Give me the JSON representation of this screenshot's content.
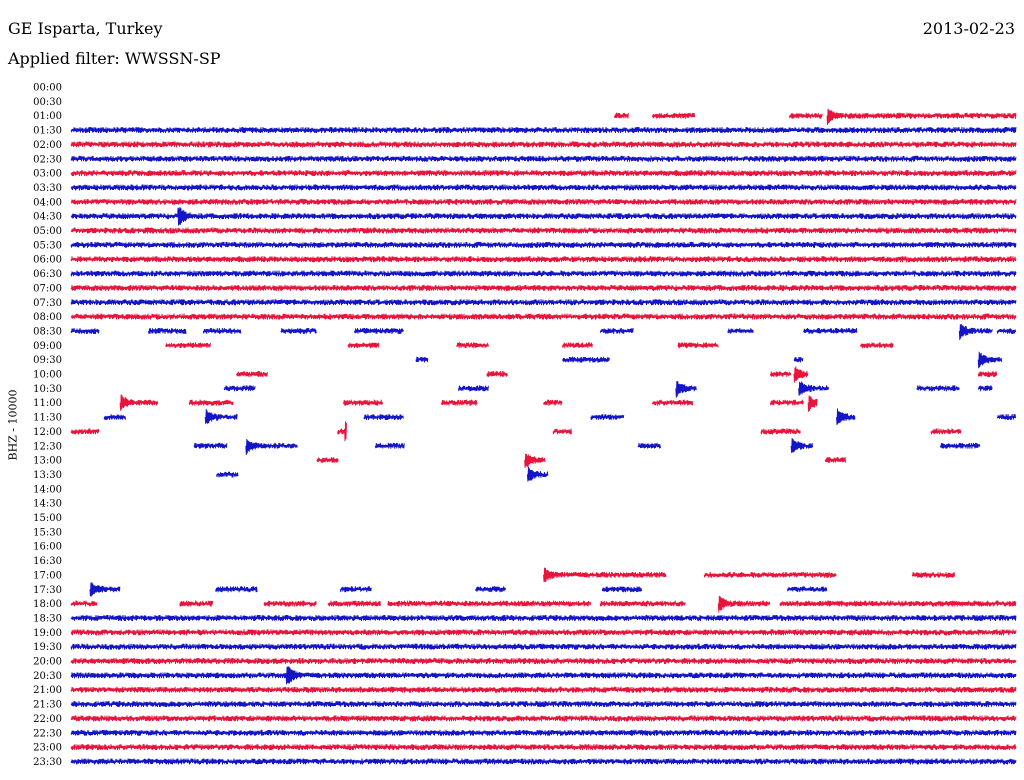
{
  "header": {
    "station": "GE Isparta, Turkey",
    "date": "2013-02-23",
    "filter": "Applied filter: WWSSN-SP"
  },
  "chart_data": {
    "type": "line",
    "title": "GE Isparta, Turkey",
    "subtitle": "Applied filter: WWSSN-SP",
    "ylabel": "BHZ - 10000",
    "xlabel": "",
    "colors": [
      "#e8143c",
      "#1414c8"
    ],
    "rows": [
      {
        "label": "00:00",
        "segments": [],
        "events": []
      },
      {
        "label": "00:30",
        "segments": [],
        "events": []
      },
      {
        "label": "01:00",
        "segments": [
          [
            0.575,
            0.59
          ],
          [
            0.615,
            0.66
          ],
          [
            0.76,
            0.795
          ],
          [
            0.8,
            1.0
          ]
        ],
        "events": [
          0.8
        ]
      },
      {
        "label": "01:30",
        "segments": [
          [
            0,
            1
          ]
        ],
        "events": []
      },
      {
        "label": "02:00",
        "segments": [
          [
            0,
            1
          ]
        ],
        "events": []
      },
      {
        "label": "02:30",
        "segments": [
          [
            0,
            1
          ]
        ],
        "events": []
      },
      {
        "label": "03:00",
        "segments": [
          [
            0,
            1
          ]
        ],
        "events": []
      },
      {
        "label": "03:30",
        "segments": [
          [
            0,
            1
          ]
        ],
        "events": []
      },
      {
        "label": "04:00",
        "segments": [
          [
            0,
            1
          ]
        ],
        "events": []
      },
      {
        "label": "04:30",
        "segments": [
          [
            0,
            1
          ]
        ],
        "events": [
          0.115
        ]
      },
      {
        "label": "05:00",
        "segments": [
          [
            0,
            1
          ]
        ],
        "events": []
      },
      {
        "label": "05:30",
        "segments": [
          [
            0,
            1
          ]
        ],
        "events": []
      },
      {
        "label": "06:00",
        "segments": [
          [
            0,
            1
          ]
        ],
        "events": []
      },
      {
        "label": "06:30",
        "segments": [
          [
            0,
            1
          ]
        ],
        "events": []
      },
      {
        "label": "07:00",
        "segments": [
          [
            0,
            1
          ]
        ],
        "events": []
      },
      {
        "label": "07:30",
        "segments": [
          [
            0,
            1
          ]
        ],
        "events": []
      },
      {
        "label": "08:00",
        "segments": [
          [
            0,
            1
          ]
        ],
        "events": []
      },
      {
        "label": "08:30",
        "segments": [
          [
            0,
            0.03
          ],
          [
            0.082,
            0.122
          ],
          [
            0.14,
            0.18
          ],
          [
            0.222,
            0.26
          ],
          [
            0.3,
            0.352
          ],
          [
            0.56,
            0.595
          ],
          [
            0.695,
            0.722
          ],
          [
            0.775,
            0.832
          ],
          [
            0.94,
            0.975
          ],
          [
            0.98,
            1.0
          ]
        ],
        "events": [
          0.94
        ]
      },
      {
        "label": "09:00",
        "segments": [
          [
            0.1,
            0.148
          ],
          [
            0.293,
            0.326
          ],
          [
            0.408,
            0.442
          ],
          [
            0.52,
            0.552
          ],
          [
            0.642,
            0.685
          ],
          [
            0.835,
            0.87
          ]
        ],
        "events": []
      },
      {
        "label": "09:30",
        "segments": [
          [
            0.365,
            0.378
          ],
          [
            0.52,
            0.57
          ],
          [
            0.765,
            0.775
          ],
          [
            0.96,
            0.985
          ]
        ],
        "events": [
          0.96
        ]
      },
      {
        "label": "10:00",
        "segments": [
          [
            0.175,
            0.208
          ],
          [
            0.44,
            0.462
          ],
          [
            0.74,
            0.762
          ],
          [
            0.765,
            0.78
          ],
          [
            0.96,
            0.98
          ]
        ],
        "events": [
          0.765
        ]
      },
      {
        "label": "10:30",
        "segments": [
          [
            0.162,
            0.195
          ],
          [
            0.41,
            0.442
          ],
          [
            0.64,
            0.662
          ],
          [
            0.77,
            0.802
          ],
          [
            0.895,
            0.94
          ],
          [
            0.96,
            0.975
          ]
        ],
        "events": [
          0.64,
          0.77
        ]
      },
      {
        "label": "11:00",
        "segments": [
          [
            0.052,
            0.092
          ],
          [
            0.125,
            0.172
          ],
          [
            0.288,
            0.33
          ],
          [
            0.392,
            0.43
          ],
          [
            0.5,
            0.52
          ],
          [
            0.615,
            0.658
          ],
          [
            0.74,
            0.775
          ],
          [
            0.78,
            0.79
          ]
        ],
        "events": [
          0.052,
          0.78
        ]
      },
      {
        "label": "11:30",
        "segments": [
          [
            0.035,
            0.058
          ],
          [
            0.142,
            0.176
          ],
          [
            0.31,
            0.352
          ],
          [
            0.55,
            0.585
          ],
          [
            0.81,
            0.83
          ],
          [
            0.98,
            1.0
          ]
        ],
        "events": [
          0.142,
          0.81
        ]
      },
      {
        "label": "12:00",
        "segments": [
          [
            0,
            0.03
          ],
          [
            0.282,
            0.292
          ],
          [
            0.51,
            0.53
          ],
          [
            0.73,
            0.772
          ],
          [
            0.91,
            0.942
          ]
        ],
        "events": [
          0.292
        ]
      },
      {
        "label": "12:30",
        "segments": [
          [
            0.13,
            0.165
          ],
          [
            0.185,
            0.24
          ],
          [
            0.322,
            0.353
          ],
          [
            0.6,
            0.624
          ],
          [
            0.762,
            0.785
          ],
          [
            0.92,
            0.962
          ]
        ],
        "events": [
          0.185,
          0.762
        ]
      },
      {
        "label": "13:00",
        "segments": [
          [
            0.26,
            0.283
          ],
          [
            0.48,
            0.502
          ],
          [
            0.798,
            0.82
          ]
        ],
        "events": [
          0.48
        ]
      },
      {
        "label": "13:30",
        "segments": [
          [
            0.154,
            0.177
          ],
          [
            0.483,
            0.505
          ]
        ],
        "events": [
          0.483
        ]
      },
      {
        "label": "14:00",
        "segments": [],
        "events": []
      },
      {
        "label": "14:30",
        "segments": [],
        "events": []
      },
      {
        "label": "15:00",
        "segments": [],
        "events": []
      },
      {
        "label": "15:30",
        "segments": [],
        "events": []
      },
      {
        "label": "16:00",
        "segments": [],
        "events": []
      },
      {
        "label": "16:30",
        "segments": [],
        "events": []
      },
      {
        "label": "17:00",
        "segments": [
          [
            0.5,
            0.63
          ],
          [
            0.67,
            0.81
          ],
          [
            0.89,
            0.935
          ]
        ],
        "events": [
          0.5
        ]
      },
      {
        "label": "17:30",
        "segments": [
          [
            0.02,
            0.052
          ],
          [
            0.153,
            0.197
          ],
          [
            0.285,
            0.318
          ],
          [
            0.428,
            0.46
          ],
          [
            0.562,
            0.604
          ],
          [
            0.758,
            0.8
          ]
        ],
        "events": [
          0.02
        ]
      },
      {
        "label": "18:00",
        "segments": [
          [
            0,
            0.028
          ],
          [
            0.115,
            0.15
          ],
          [
            0.204,
            0.26
          ],
          [
            0.272,
            0.328
          ],
          [
            0.335,
            0.55
          ],
          [
            0.56,
            0.65
          ],
          [
            0.685,
            0.74
          ],
          [
            0.75,
            1.0
          ]
        ],
        "events": [
          0.685
        ]
      },
      {
        "label": "18:30",
        "segments": [
          [
            0,
            1
          ]
        ],
        "events": []
      },
      {
        "label": "19:00",
        "segments": [
          [
            0,
            1
          ]
        ],
        "events": []
      },
      {
        "label": "19:30",
        "segments": [
          [
            0,
            1
          ]
        ],
        "events": []
      },
      {
        "label": "20:00",
        "segments": [
          [
            0,
            1
          ]
        ],
        "events": []
      },
      {
        "label": "20:30",
        "segments": [
          [
            0,
            1
          ]
        ],
        "events": [
          0.23
        ]
      },
      {
        "label": "21:00",
        "segments": [
          [
            0,
            1
          ]
        ],
        "events": []
      },
      {
        "label": "21:30",
        "segments": [
          [
            0,
            1
          ]
        ],
        "events": []
      },
      {
        "label": "22:00",
        "segments": [
          [
            0,
            1
          ]
        ],
        "events": []
      },
      {
        "label": "22:30",
        "segments": [
          [
            0,
            1
          ]
        ],
        "events": []
      },
      {
        "label": "23:00",
        "segments": [
          [
            0,
            1
          ]
        ],
        "events": []
      },
      {
        "label": "23:30",
        "segments": [
          [
            0,
            1
          ]
        ],
        "events": []
      }
    ]
  }
}
